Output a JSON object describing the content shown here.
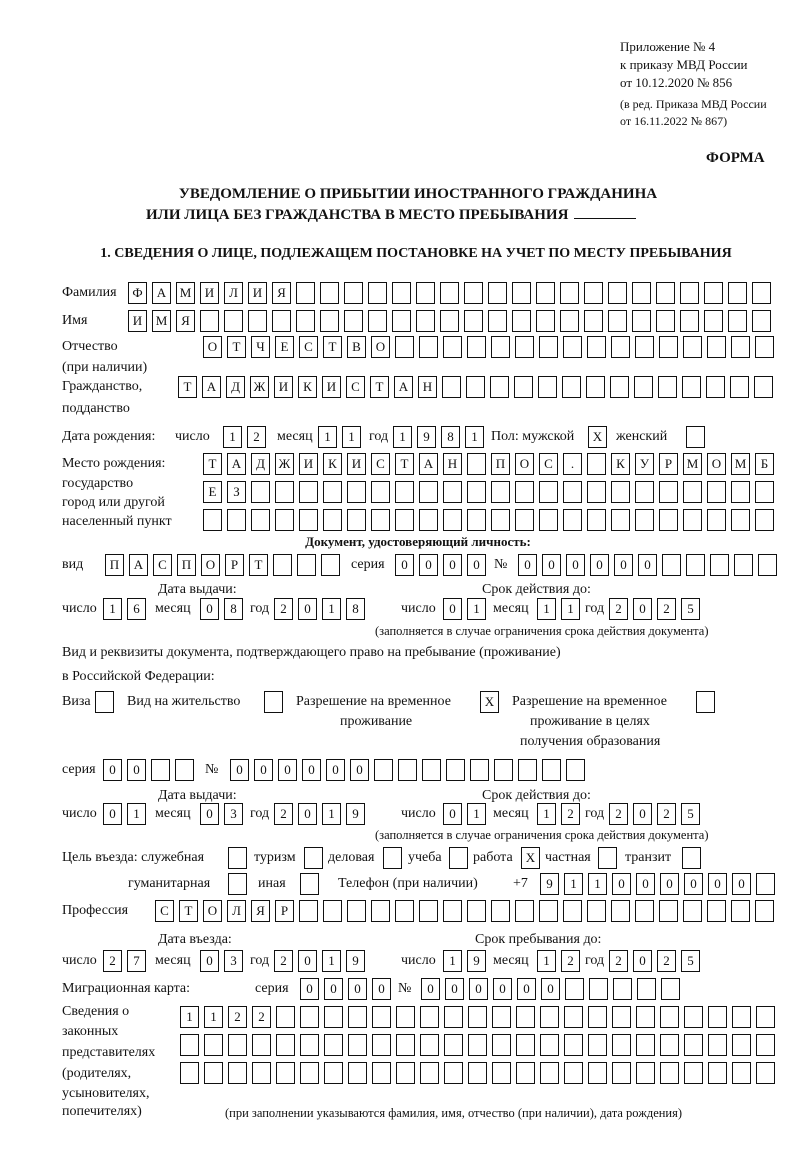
{
  "header": {
    "appendix": "Приложение № 4",
    "order": "к приказу МВД России",
    "order_date": "от 10.12.2020 № 856",
    "edit1": "(в ред. Приказа МВД России",
    "edit2": "от 16.11.2022 № 867)",
    "form": "ФОРМА"
  },
  "title": {
    "line1": "УВЕДОМЛЕНИЕ О ПРИБЫТИИ ИНОСТРАННОГО ГРАЖДАНИНА",
    "line2": "ИЛИ ЛИЦА БЕЗ ГРАЖДАНСТВА В МЕСТО ПРЕБЫВАНИЯ"
  },
  "section1": "1. СВЕДЕНИЯ О ЛИЦЕ, ПОДЛЕЖАЩЕМ ПОСТАНОВКЕ НА УЧЕТ ПО МЕСТУ ПРЕБЫВАНИЯ",
  "labels": {
    "surname": "Фамилия",
    "name": "Имя",
    "patronymic": "Отчество",
    "patronymic_note": "(при наличии)",
    "citizenship": "Гражданство,",
    "citizenship2": "подданство",
    "dob": "Дата рождения:",
    "day": "число",
    "month": "месяц",
    "year": "год",
    "sex_male": "Пол: мужской",
    "sex_female": "женский",
    "birthplace1": "Место рождения:",
    "birthplace2": "государство",
    "birthplace3": "город или другой",
    "birthplace4": "населенный пункт",
    "id_doc": "Документ, удостоверяющий личность:",
    "kind": "вид",
    "series": "серия",
    "number": "№",
    "issue_date": "Дата выдачи:",
    "valid_until": "Срок действия до:",
    "validity_note": "(заполняется в случае ограничения срока действия документа)",
    "right_doc1": "Вид и реквизиты документа, подтверждающего право на пребывание (проживание)",
    "right_doc2": "в Российской Федерации:",
    "visa": "Виза",
    "residence_permit": "Вид на жительство",
    "temp_residence1": "Разрешение на временное",
    "temp_residence2": "проживание",
    "temp_edu1": "Разрешение на временное",
    "temp_edu2": "проживание в целях",
    "temp_edu3": "получения образования",
    "purpose": "Цель въезда: служебная",
    "tourism": "туризм",
    "business": "деловая",
    "study": "учеба",
    "work": "работа",
    "private": "частная",
    "transit": "транзит",
    "humanitarian": "гуманитарная",
    "other": "иная",
    "phone": "Телефон (при наличии)",
    "phone_prefix": "+7",
    "profession": "Профессия",
    "entry_date": "Дата въезда:",
    "stay_until": "Срок пребывания до:",
    "migration_card": "Миграционная карта:",
    "reps1": "Сведения о",
    "reps2": "законных",
    "reps3": "представителях",
    "reps4": "(родителях,",
    "reps5": "усыновителях,",
    "reps6": "попечителях)",
    "reps_note": "(при заполнении указываются фамилия, имя, отчество (при наличии), дата рождения)"
  },
  "person": {
    "surname": "ФАМИЛИЯ",
    "name": "ИМЯ",
    "patronymic": "ОТЧЕСТВО",
    "citizenship": "ТАДЖИКИСТАН",
    "dob": {
      "day": "12",
      "month": "11",
      "year": "1981"
    },
    "sex_male": "X",
    "sex_female": "",
    "birthplace": [
      "ТАДЖИКИСТАН ПОС. КУРМОМБ",
      "ЕЗ",
      ""
    ],
    "id_doc": {
      "kind": "ПАСПОРТ",
      "series": "0000",
      "number": "000000",
      "issued": {
        "day": "16",
        "month": "08",
        "year": "2018"
      },
      "valid": {
        "day": "01",
        "month": "11",
        "year": "2025"
      }
    },
    "right_doc": {
      "visa": "",
      "residence_permit": "",
      "temp_residence": "X",
      "temp_edu": "",
      "series": "00",
      "number": "000000",
      "issued": {
        "day": "01",
        "month": "03",
        "year": "2019"
      },
      "valid": {
        "day": "01",
        "month": "12",
        "year": "2025"
      }
    },
    "purpose": {
      "official": "",
      "tourism": "",
      "business": "",
      "study": "",
      "work": "X",
      "private": "",
      "transit": "",
      "humanitarian": "",
      "other": ""
    },
    "phone": "911000000",
    "profession": "СТОЛЯР",
    "entry_date": {
      "day": "27",
      "month": "03",
      "year": "2019"
    },
    "stay_until": {
      "day": "19",
      "month": "12",
      "year": "2025"
    },
    "migration_card": {
      "series": "0000",
      "number": "000000"
    },
    "legal_reps": [
      "1122",
      "",
      ""
    ]
  }
}
